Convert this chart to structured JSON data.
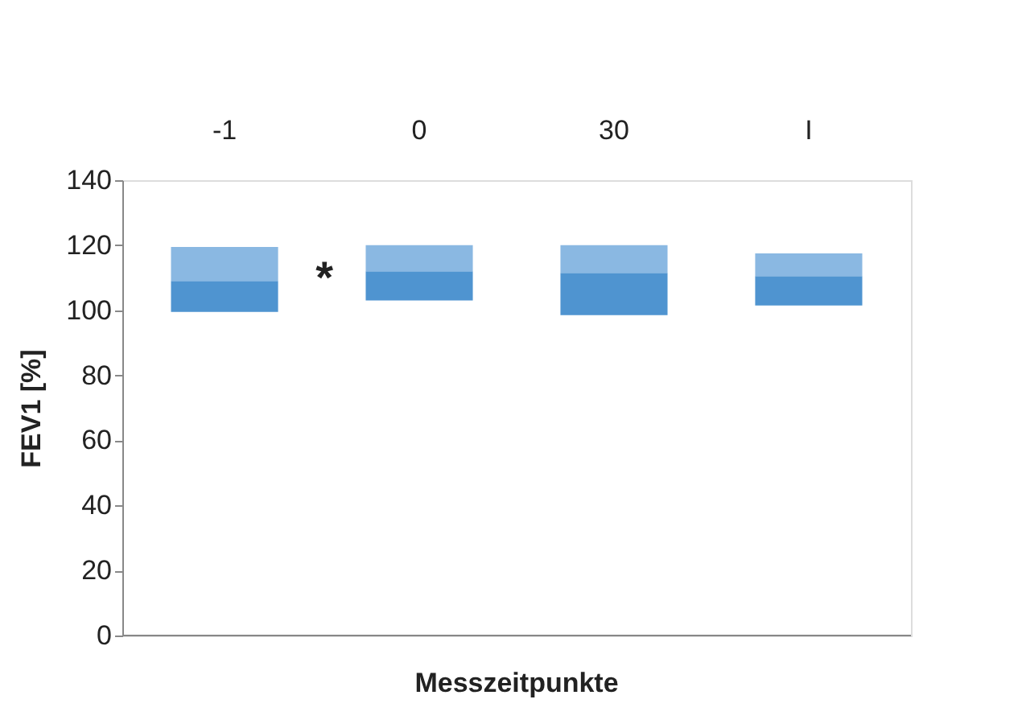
{
  "chart_data": {
    "type": "box",
    "ylabel": "FEV1 [%]",
    "xlabel": "Messzeitpunkte",
    "categories": [
      "-1",
      "0",
      "30",
      "I"
    ],
    "series": [
      {
        "color": "#8ab8e2",
        "colors": [
          "#4f94d0",
          "#4f94d0",
          "#4f94d0",
          "#4f94d0"
        ],
        "boxes": [
          {
            "low": 99.5,
            "q1": 99.5,
            "median": 109,
            "q3": 119.5,
            "high": 119.5
          },
          {
            "low": 103,
            "q1": 103,
            "median": 112,
            "q3": 120,
            "high": 120
          },
          {
            "low": 98.5,
            "q1": 98.5,
            "median": 111.5,
            "q3": 120,
            "high": 120
          },
          {
            "low": 101.5,
            "q1": 101.5,
            "median": 110.5,
            "q3": 117.5,
            "high": 117.5
          }
        ]
      }
    ],
    "ylim": [
      0,
      140
    ],
    "yticks": [
      0,
      20,
      40,
      60,
      80,
      100,
      120,
      140
    ],
    "grid": false,
    "annotations": [
      "*"
    ]
  }
}
